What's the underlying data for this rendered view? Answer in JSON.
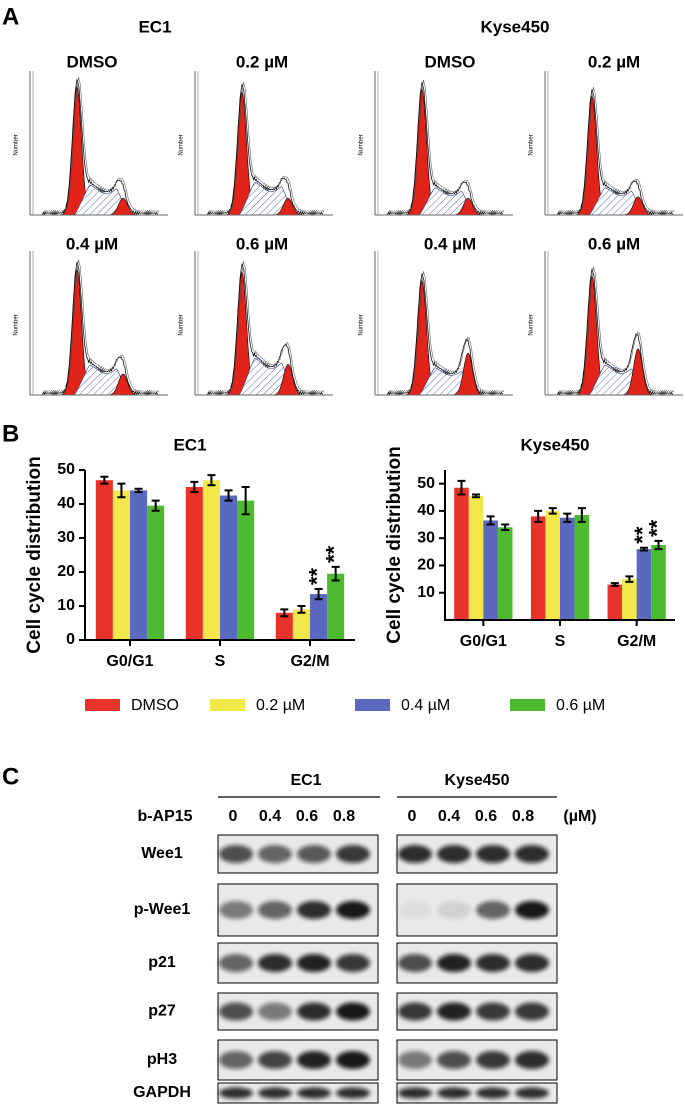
{
  "panel_a": {
    "label": "A",
    "y_label": "Number",
    "groups": [
      {
        "title": "EC1",
        "plots": [
          "DMSO",
          "0.2 µM",
          "0.4 µM",
          "0.6 µM"
        ]
      },
      {
        "title": "Kyse450",
        "plots": [
          "DMSO",
          "0.2 µM",
          "0.4 µM",
          "0.6 µM"
        ]
      }
    ]
  },
  "panel_b": {
    "label": "B"
  },
  "chart_data": [
    {
      "type": "bar",
      "title": "EC1",
      "y_label": "Cell cycle distribution",
      "categories": [
        "G0/G1",
        "S",
        "G2/M"
      ],
      "series": [
        {
          "name": "DMSO",
          "color": "#e8332a",
          "values": [
            47,
            45,
            8
          ],
          "errors": [
            1,
            1.5,
            1
          ]
        },
        {
          "name": "0.2 µM",
          "color": "#f3e84a",
          "values": [
            44,
            47,
            9
          ],
          "errors": [
            2,
            1.5,
            1
          ]
        },
        {
          "name": "0.4 µM",
          "color": "#5a69bf",
          "values": [
            44,
            42.5,
            13.5
          ],
          "errors": [
            0.5,
            1.5,
            1.5
          ]
        },
        {
          "name": "0.6 µM",
          "color": "#4dbb2f",
          "values": [
            39.5,
            41,
            19.5
          ],
          "errors": [
            1.5,
            4,
            2
          ]
        }
      ],
      "ylim": [
        0,
        50
      ],
      "yticks": [
        0,
        10,
        20,
        30,
        40,
        50
      ],
      "annotations": [
        {
          "text": "**",
          "category": "G2/M",
          "series": "0.4 µM"
        },
        {
          "text": "**",
          "category": "G2/M",
          "series": "0.6 µM"
        }
      ]
    },
    {
      "type": "bar",
      "title": "Kyse450",
      "y_label": "Cell cycle distribution",
      "categories": [
        "G0/G1",
        "S",
        "G2/M"
      ],
      "series": [
        {
          "name": "DMSO",
          "color": "#e8332a",
          "values": [
            48.5,
            38,
            13
          ],
          "errors": [
            2.5,
            2,
            0.5
          ]
        },
        {
          "name": "0.2 µM",
          "color": "#f3e84a",
          "values": [
            45.5,
            40,
            15
          ],
          "errors": [
            0.5,
            1,
            1
          ]
        },
        {
          "name": "0.4 µM",
          "color": "#5a69bf",
          "values": [
            36.5,
            37.5,
            26
          ],
          "errors": [
            1.5,
            1.5,
            0.5
          ]
        },
        {
          "name": "0.6 µM",
          "color": "#4dbb2f",
          "values": [
            34,
            38.5,
            27.5
          ],
          "errors": [
            1,
            2.5,
            1.5
          ]
        }
      ],
      "ylim": [
        0,
        55
      ],
      "yticks": [
        10,
        20,
        30,
        40,
        50
      ],
      "annotations": [
        {
          "text": "**",
          "category": "G2/M",
          "series": "0.4 µM"
        },
        {
          "text": "**",
          "category": "G2/M",
          "series": "0.6 µM"
        }
      ]
    }
  ],
  "panel_c": {
    "label": "C",
    "treatment": "b-AP15",
    "unit": "(µM)",
    "groups": [
      {
        "title": "EC1",
        "doses": [
          "0",
          "0.4",
          "0.6",
          "0.8"
        ]
      },
      {
        "title": "Kyse450",
        "doses": [
          "0",
          "0.4",
          "0.6",
          "0.8"
        ]
      }
    ],
    "rows": [
      "Wee1",
      "p-Wee1",
      "p21",
      "p27",
      "pH3",
      "GAPDH"
    ]
  }
}
